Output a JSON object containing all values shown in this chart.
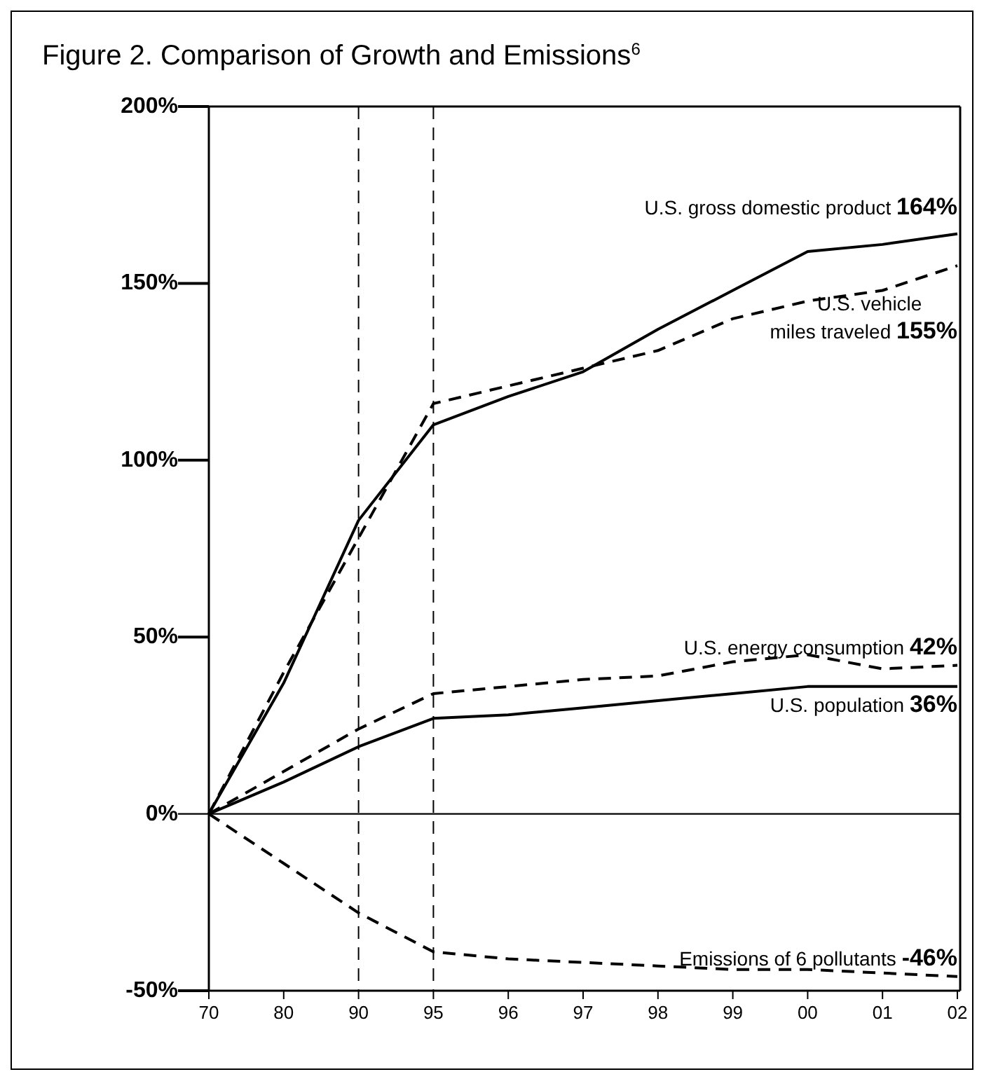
{
  "chart_data": {
    "type": "line",
    "title": "Figure 2. Comparison of Growth and Emissions$^{6}$",
    "categories": [
      "70",
      "80",
      "90",
      "95",
      "96",
      "97",
      "98",
      "99",
      "00",
      "01",
      "02"
    ],
    "ylim": [
      -50,
      200
    ],
    "yticks": [
      {
        "value": -50,
        "label": "-50%"
      },
      {
        "value": 0,
        "label": "0%"
      },
      {
        "value": 50,
        "label": "50%"
      },
      {
        "value": 100,
        "label": "100%"
      },
      {
        "value": 150,
        "label": "150%"
      },
      {
        "value": 200,
        "label": "200%"
      }
    ],
    "series": [
      {
        "name": "U.S. gross domestic product",
        "color": "#000000",
        "line_style": "solid",
        "values": [
          0,
          37,
          83,
          110,
          118,
          125,
          137,
          148,
          159,
          161,
          164
        ],
        "value_labels": [
          null,
          null,
          null,
          null,
          null,
          null,
          null,
          null,
          null,
          null,
          "164%"
        ]
      },
      {
        "name": "U.S. vehicle miles traveled",
        "color": "#000000",
        "line_style": "dashed",
        "values": [
          0,
          40,
          78,
          116,
          121,
          126,
          131,
          140,
          145,
          148,
          155
        ],
        "value_labels": [
          null,
          null,
          null,
          null,
          null,
          null,
          null,
          null,
          null,
          null,
          "155%"
        ]
      },
      {
        "name": "U.S. energy consumption",
        "color": "#000000",
        "line_style": "dashed",
        "values": [
          0,
          12,
          24,
          34,
          36,
          38,
          39,
          43,
          45,
          41,
          42
        ],
        "value_labels": [
          null,
          null,
          null,
          null,
          null,
          null,
          null,
          null,
          null,
          null,
          "42%"
        ]
      },
      {
        "name": "U.S. population",
        "color": "#000000",
        "line_style": "solid",
        "values": [
          0,
          9,
          19,
          27,
          28,
          30,
          32,
          34,
          36,
          36,
          36
        ],
        "value_labels": [
          null,
          null,
          null,
          null,
          null,
          null,
          null,
          null,
          null,
          null,
          "36%"
        ]
      },
      {
        "name": "Emissions of  6 pollutants",
        "color": "#000000",
        "line_style": "dashed",
        "values": [
          0,
          -14,
          -28,
          -39,
          -41,
          -42,
          -43,
          -44,
          -44,
          -45,
          -46
        ],
        "value_labels": [
          null,
          null,
          null,
          null,
          null,
          null,
          null,
          null,
          null,
          null,
          "-46%"
        ]
      }
    ],
    "ref_lines": [
      {
        "axis": "y",
        "value": 0,
        "line_style": "solid",
        "color": "#000000"
      },
      {
        "axis": "x",
        "value": "90",
        "line_style": "dashed",
        "color": "#000000"
      },
      {
        "axis": "x",
        "value": "95",
        "line_style": "dashed",
        "color": "#000000"
      }
    ],
    "grid": false,
    "marker": "none"
  }
}
